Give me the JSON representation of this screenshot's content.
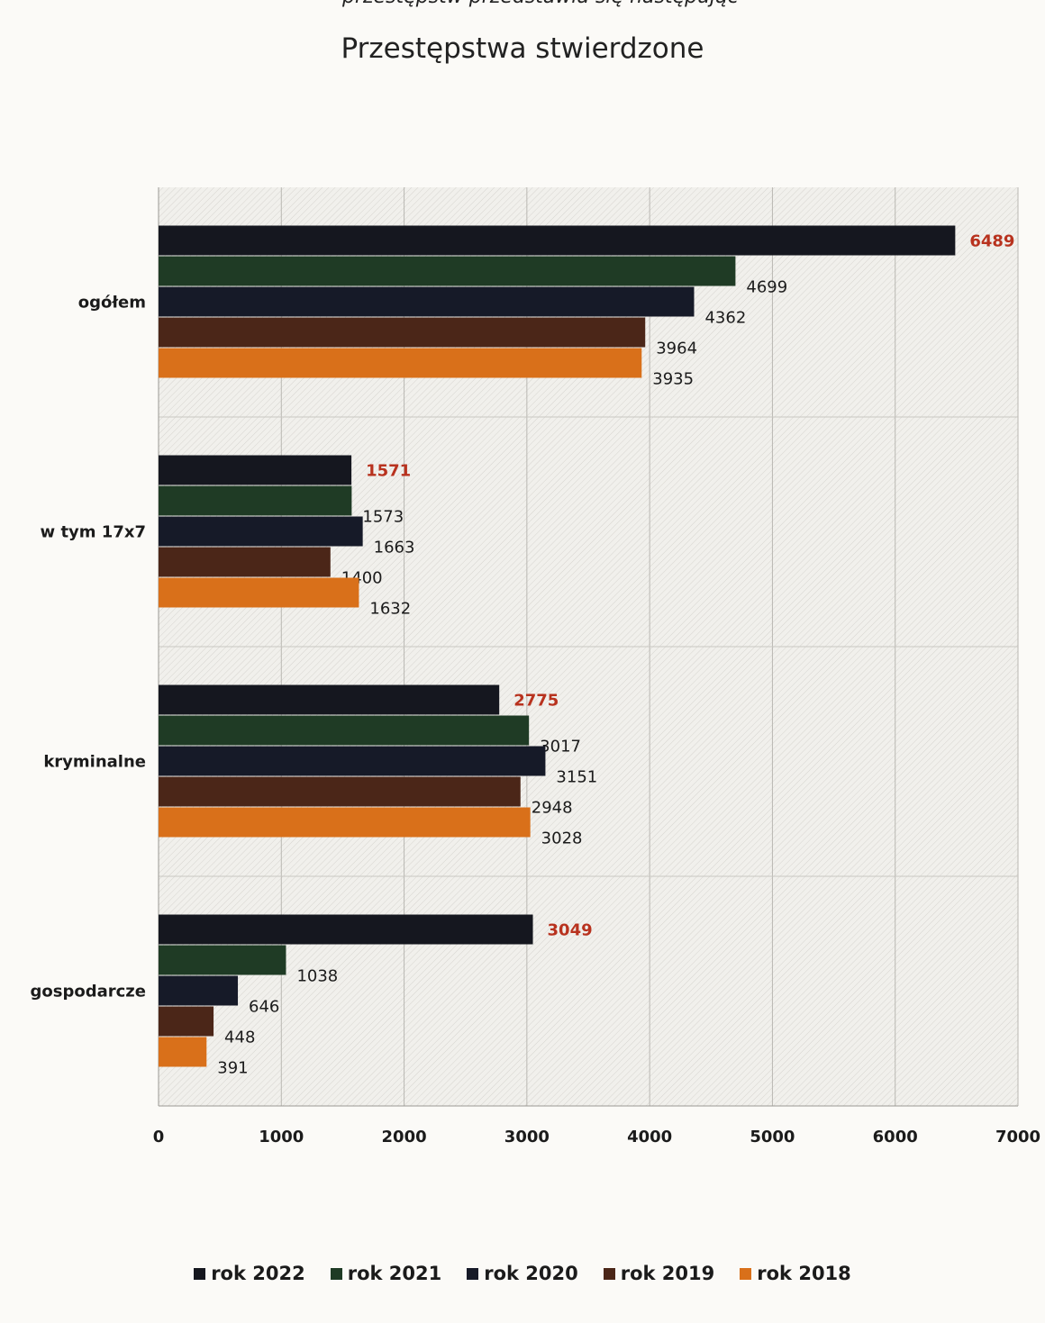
{
  "page": {
    "header_fragment": "przestępstw przedstawia się następując"
  },
  "chart_data": {
    "type": "bar",
    "orientation": "horizontal",
    "title": "Przestępstwa stwierdzone",
    "categories": [
      "ogółem",
      "w tym 17x7",
      "kryminalne",
      "gospodarcze"
    ],
    "series": [
      {
        "name": "rok 2022",
        "color": "#15171f",
        "values": [
          6489,
          1571,
          2775,
          3049
        ]
      },
      {
        "name": "rok 2021",
        "color": "#1f3b25",
        "values": [
          4699,
          1573,
          3017,
          1038
        ]
      },
      {
        "name": "rok 2020",
        "color": "#161a28",
        "values": [
          4362,
          1663,
          3151,
          646
        ]
      },
      {
        "name": "rok 2019",
        "color": "#4b2618",
        "values": [
          3964,
          1400,
          2948,
          448
        ]
      },
      {
        "name": "rok 2018",
        "color": "#d9701a",
        "values": [
          3935,
          1632,
          3028,
          391
        ]
      }
    ],
    "highlight_series": "rok 2022",
    "highlight_label_color": "#b8321e",
    "xlim": [
      0,
      7000
    ],
    "xticks": [
      0,
      1000,
      2000,
      3000,
      4000,
      5000,
      6000,
      7000
    ],
    "grid": true,
    "legend_position": "bottom"
  }
}
